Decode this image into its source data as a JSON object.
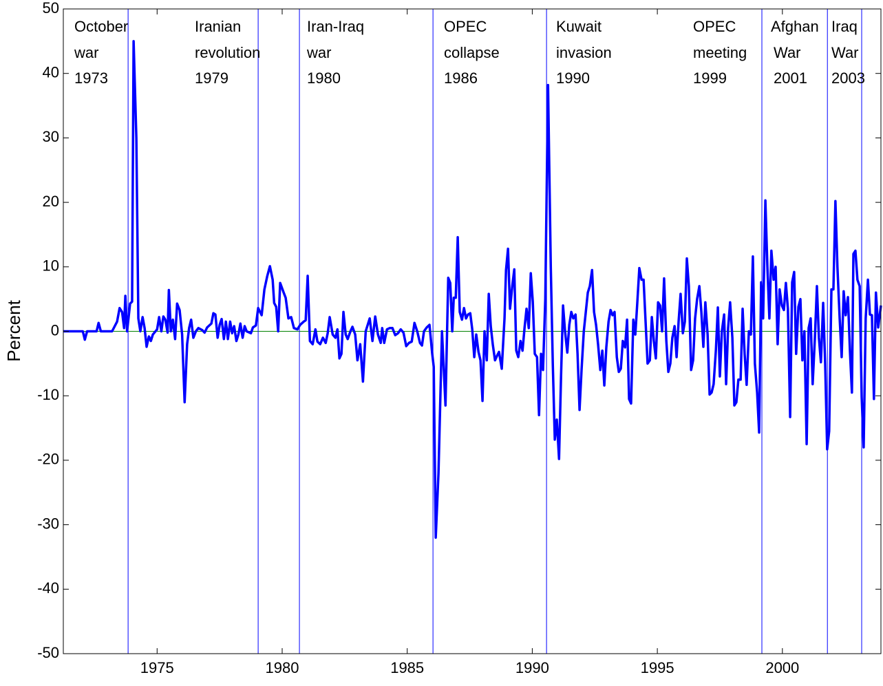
{
  "chart_data": {
    "type": "line",
    "y_label": "Percent",
    "color": "#0000ff",
    "xlim": [
      1971.25,
      2003.94
    ],
    "xticks": [
      1975,
      1980,
      1985,
      1990,
      1995,
      2000
    ],
    "ylim": [
      -50,
      50
    ],
    "yticks": [
      -50,
      -40,
      -30,
      -20,
      -10,
      0,
      10,
      20,
      30,
      40,
      50
    ],
    "grid": false,
    "hline": 0,
    "hline_color": "#008000",
    "event_color": "#0000ff",
    "events": [
      {
        "x": 1973.84,
        "label": [
          "October",
          "war",
          "1973"
        ]
      },
      {
        "x": 1979.04,
        "label": [
          "Iranian",
          "revolution",
          "1979"
        ]
      },
      {
        "x": 1980.69,
        "label": [
          "Iran-Iraq",
          "war",
          "1980"
        ]
      },
      {
        "x": 1986.03,
        "label": [
          "OPEC",
          "collapse",
          "1986"
        ]
      },
      {
        "x": 1990.57,
        "label": [
          "Kuwait",
          "invasion",
          "1990"
        ]
      },
      {
        "x": 1999.18,
        "label": [
          "OPEC",
          "meeting",
          "1999"
        ]
      },
      {
        "x": 2001.8,
        "label": [
          "Afghan",
          "War",
          "2001"
        ]
      },
      {
        "x": 2003.17,
        "label": [
          "Iraq",
          "War",
          "2003"
        ]
      }
    ],
    "x": [
      1971.25,
      1972.03,
      1972.11,
      1972.2,
      1972.58,
      1972.66,
      1972.75,
      1973.2,
      1973.4,
      1973.5,
      1973.6,
      1973.68,
      1973.73,
      1973.8,
      1973.92,
      1974.0,
      1974.06,
      1974.17,
      1974.25,
      1974.33,
      1974.42,
      1974.5,
      1974.58,
      1974.67,
      1974.75,
      1974.83,
      1975.0,
      1975.08,
      1975.17,
      1975.25,
      1975.33,
      1975.42,
      1975.47,
      1975.55,
      1975.63,
      1975.72,
      1975.8,
      1975.9,
      1976.0,
      1976.1,
      1976.2,
      1976.28,
      1976.36,
      1976.45,
      1976.55,
      1976.65,
      1976.8,
      1976.9,
      1977.0,
      1977.17,
      1977.25,
      1977.33,
      1977.42,
      1977.5,
      1977.58,
      1977.67,
      1977.75,
      1977.83,
      1977.92,
      1978.0,
      1978.08,
      1978.17,
      1978.25,
      1978.33,
      1978.42,
      1978.5,
      1978.58,
      1978.75,
      1978.83,
      1978.95,
      1979.04,
      1979.18,
      1979.29,
      1979.4,
      1979.51,
      1979.62,
      1979.68,
      1979.76,
      1979.84,
      1979.92,
      1980.06,
      1980.14,
      1980.25,
      1980.36,
      1980.47,
      1980.61,
      1980.72,
      1980.86,
      1980.94,
      1981.02,
      1981.11,
      1981.22,
      1981.33,
      1981.41,
      1981.52,
      1981.63,
      1981.74,
      1981.82,
      1981.9,
      1982.02,
      1982.13,
      1982.21,
      1982.29,
      1982.37,
      1982.45,
      1982.54,
      1982.62,
      1982.73,
      1982.81,
      1982.92,
      1983.01,
      1983.12,
      1983.23,
      1983.34,
      1983.5,
      1983.61,
      1983.72,
      1983.83,
      1983.94,
      1984.0,
      1984.08,
      1984.19,
      1984.3,
      1984.41,
      1984.52,
      1984.63,
      1984.74,
      1984.85,
      1984.96,
      1985.07,
      1985.18,
      1985.29,
      1985.4,
      1985.51,
      1985.59,
      1985.67,
      1985.78,
      1985.89,
      1986.0,
      1986.06,
      1986.14,
      1986.25,
      1986.39,
      1986.53,
      1986.64,
      1986.72,
      1986.8,
      1986.86,
      1986.94,
      1987.02,
      1987.1,
      1987.19,
      1987.27,
      1987.35,
      1987.43,
      1987.52,
      1987.6,
      1987.68,
      1987.76,
      1987.85,
      1987.93,
      1988.01,
      1988.09,
      1988.18,
      1988.26,
      1988.34,
      1988.42,
      1988.51,
      1988.59,
      1988.67,
      1988.78,
      1988.89,
      1988.95,
      1989.03,
      1989.11,
      1989.2,
      1989.28,
      1989.36,
      1989.44,
      1989.53,
      1989.61,
      1989.69,
      1989.77,
      1989.86,
      1989.94,
      1990.02,
      1990.1,
      1990.19,
      1990.27,
      1990.35,
      1990.43,
      1990.52,
      1990.63,
      1990.74,
      1990.82,
      1990.9,
      1990.98,
      1991.07,
      1991.15,
      1991.23,
      1991.31,
      1991.4,
      1991.48,
      1991.56,
      1991.64,
      1991.73,
      1991.81,
      1991.89,
      1991.97,
      1992.06,
      1992.14,
      1992.22,
      1992.3,
      1992.39,
      1992.47,
      1992.55,
      1992.63,
      1992.72,
      1992.8,
      1992.88,
      1992.96,
      1993.05,
      1993.13,
      1993.21,
      1993.29,
      1993.38,
      1993.46,
      1993.54,
      1993.62,
      1993.71,
      1993.79,
      1993.87,
      1993.95,
      1994.04,
      1994.12,
      1994.2,
      1994.28,
      1994.37,
      1994.45,
      1994.53,
      1994.61,
      1994.7,
      1994.78,
      1994.86,
      1994.94,
      1995.03,
      1995.11,
      1995.19,
      1995.27,
      1995.36,
      1995.44,
      1995.52,
      1995.6,
      1995.69,
      1995.77,
      1995.85,
      1995.93,
      1996.02,
      1996.1,
      1996.18,
      1996.26,
      1996.35,
      1996.43,
      1996.51,
      1996.59,
      1996.68,
      1996.76,
      1996.84,
      1996.92,
      1997.01,
      1997.09,
      1997.17,
      1997.25,
      1997.34,
      1997.42,
      1997.5,
      1997.58,
      1997.67,
      1997.75,
      1997.83,
      1997.91,
      1998.0,
      1998.08,
      1998.16,
      1998.24,
      1998.33,
      1998.41,
      1998.49,
      1998.57,
      1998.66,
      1998.74,
      1998.82,
      1998.9,
      1998.99,
      1999.07,
      1999.15,
      1999.23,
      1999.32,
      1999.4,
      1999.48,
      1999.56,
      1999.65,
      1999.73,
      1999.81,
      1999.89,
      1999.98,
      2000.06,
      2000.14,
      2000.22,
      2000.31,
      2000.39,
      2000.47,
      2000.55,
      2000.64,
      2000.72,
      2000.8,
      2000.88,
      2000.97,
      2001.05,
      2001.13,
      2001.21,
      2001.3,
      2001.38,
      2001.46,
      2001.54,
      2001.63,
      2001.71,
      2001.79,
      2001.87,
      2001.96,
      2002.04,
      2002.12,
      2002.2,
      2002.29,
      2002.37,
      2002.45,
      2002.53,
      2002.62,
      2002.7,
      2002.78,
      2002.84,
      2002.92,
      2003.0,
      2003.09,
      2003.17,
      2003.25,
      2003.33,
      2003.42,
      2003.5,
      2003.58,
      2003.66,
      2003.74,
      2003.83,
      2003.94
    ],
    "values": [
      0,
      0,
      -1.3,
      0,
      0,
      1.3,
      0,
      0,
      1.5,
      3.6,
      3,
      0.5,
      5.5,
      0,
      4.3,
      4.6,
      45,
      30,
      2,
      0,
      2.2,
      0.5,
      -2.4,
      -0.8,
      -1.5,
      -0.5,
      0.3,
      2.2,
      0,
      2.3,
      1.8,
      -0.2,
      6.4,
      0,
      1.8,
      -1.2,
      4.3,
      3.3,
      -0.5,
      -11,
      -2,
      0.5,
      1.8,
      -1,
      0,
      0.5,
      0.2,
      -0.2,
      0.6,
      1.2,
      2.8,
      2.6,
      -1,
      1,
      1.9,
      -1.2,
      1.5,
      -1.2,
      1.5,
      -0.3,
      0.8,
      -1.5,
      -0.5,
      1.2,
      -1,
      0.8,
      0,
      -0.3,
      0.6,
      0.9,
      3.6,
      2.5,
      6.5,
      8.5,
      10.1,
      8,
      4.4,
      3.8,
      0,
      7.5,
      6,
      5.2,
      2,
      2.2,
      0.5,
      0.3,
      1,
      1.5,
      1.7,
      8.6,
      -1.5,
      -2,
      0.3,
      -1.6,
      -2,
      -1,
      -1.8,
      -0.3,
      2.2,
      -0.5,
      -1,
      0.3,
      -4.2,
      -3.5,
      3,
      -0.5,
      -1.2,
      0,
      0.7,
      -0.5,
      -4.5,
      -2,
      -7.8,
      0,
      2,
      -1.5,
      2.3,
      -0.5,
      -1.8,
      0.5,
      -1.8,
      0.3,
      0.5,
      0.5,
      -0.6,
      -0.3,
      0.3,
      -0.2,
      -2.3,
      -1.8,
      -1.6,
      1.3,
      0,
      -1.8,
      -2.2,
      0,
      0.6,
      1,
      -3.5,
      -5.5,
      -32,
      -22,
      0,
      -11.5,
      8.3,
      7.5,
      0,
      5.2,
      5.2,
      14.6,
      3,
      1.8,
      3.6,
      2,
      2.6,
      2.8,
      0.3,
      -4,
      -0.5,
      -3.2,
      -4.5,
      -10.8,
      0,
      -4.5,
      5.8,
      0.8,
      -2,
      -4.5,
      -3.8,
      -3.2,
      -5.8,
      2,
      9.5,
      12.8,
      3.5,
      7,
      9.6,
      -3,
      -4,
      -1.5,
      -3,
      0.5,
      3.5,
      0.5,
      9,
      4.6,
      -3.5,
      -4,
      -13,
      -3.5,
      -6,
      5,
      38.2,
      10,
      -5,
      -16.8,
      -13.7,
      -19.8,
      -7,
      4,
      0,
      -3.3,
      1,
      3,
      2,
      2.6,
      -3.5,
      -12.2,
      -6,
      0,
      3,
      6,
      7,
      9.5,
      3,
      1,
      -2,
      -6,
      -3,
      -8.4,
      -2.5,
      1.5,
      3.3,
      2.5,
      3,
      -4,
      -6.3,
      -5.8,
      -1.5,
      -2.5,
      1.8,
      -10.5,
      -11.2,
      1.8,
      -0.5,
      4.5,
      9.8,
      8,
      8,
      1.5,
      -5,
      -4.5,
      2.2,
      -1.5,
      -4.2,
      4.5,
      4,
      0,
      8.2,
      -1.5,
      -6.3,
      -5,
      -1,
      0.8,
      -4,
      1.5,
      5.8,
      -0.3,
      1.5,
      11.3,
      7,
      -6,
      -4.5,
      2,
      5,
      7,
      3,
      -2.4,
      4.5,
      -0.5,
      -9.8,
      -9.5,
      -8.2,
      -3,
      3.7,
      -7,
      0,
      2.6,
      -8.2,
      0.5,
      4.5,
      -1,
      -11.5,
      -11,
      -7.5,
      -7.5,
      3.5,
      -3.5,
      -8.3,
      0,
      -0.5,
      11.6,
      -5,
      -9.5,
      -15.7,
      7.6,
      2,
      20.3,
      10,
      2,
      12.5,
      8,
      10,
      -2,
      6.5,
      4,
      3.3,
      7.5,
      3.5,
      -13.3,
      7.6,
      9.2,
      -3.5,
      3.8,
      5,
      -4.5,
      0,
      -17.5,
      0.5,
      2,
      -8.2,
      -1,
      7,
      -1,
      -4.8,
      4.4,
      -5,
      -18.3,
      -15.5,
      6.5,
      6.5,
      20.2,
      10,
      2,
      -4,
      6.2,
      2.5,
      5.3,
      -3,
      -9.5,
      12,
      12.5,
      8,
      7,
      -10.2,
      -18,
      2,
      8,
      2.6,
      2.5,
      -10.5,
      6,
      0.6,
      4
    ]
  }
}
